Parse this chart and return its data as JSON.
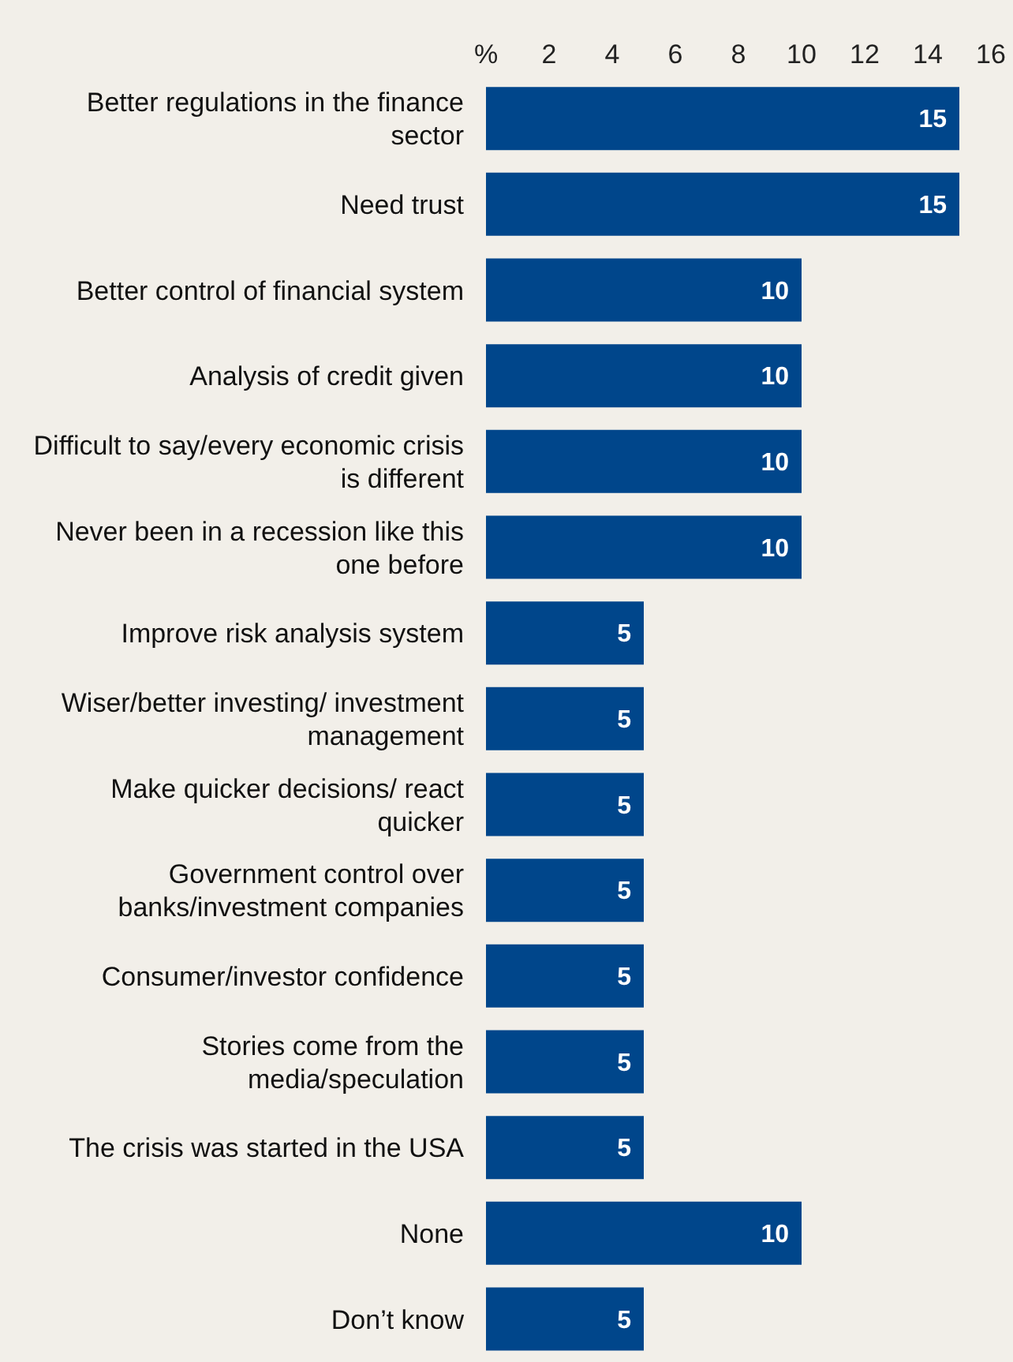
{
  "chart_data": {
    "type": "bar",
    "orientation": "horizontal",
    "categories": [
      "Better regulations in the finance sector",
      "Need trust",
      "Better control of financial system",
      "Analysis of credit given",
      "Difficult to say/every economic crisis is different",
      "Never been in a recession like this one before",
      "Improve risk analysis system",
      "Wiser/better investing/ investment management",
      "Make quicker decisions/ react quicker",
      "Government control over banks/investment companies",
      "Consumer/investor confidence",
      "Stories come from the media/speculation",
      "The crisis was started in the USA",
      "None",
      "Don’t know"
    ],
    "values": [
      15,
      15,
      10,
      10,
      10,
      10,
      5,
      5,
      5,
      5,
      5,
      5,
      5,
      10,
      5
    ],
    "color": "#00468b",
    "xlim": [
      0,
      16
    ],
    "xticks": [
      {
        "value": 0,
        "label": "%"
      },
      2,
      4,
      6,
      8,
      10,
      12,
      14,
      16
    ],
    "data_labels": true,
    "grid": false,
    "legend": false
  }
}
